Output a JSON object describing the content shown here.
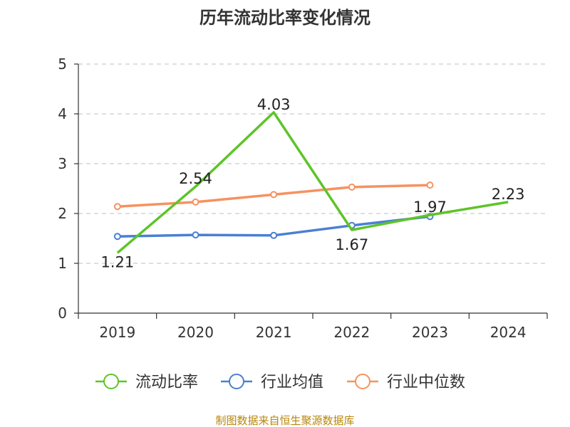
{
  "chart_data": {
    "type": "line",
    "title": "历年流动比率变化情况",
    "xlabel": "",
    "ylabel": "",
    "categories": [
      "2019",
      "2020",
      "2021",
      "2022",
      "2023",
      "2024"
    ],
    "ylim": [
      0,
      5
    ],
    "yticks": [
      0,
      1,
      2,
      3,
      4,
      5
    ],
    "grid": true,
    "grid_style": "dashed",
    "legend_position": "bottom",
    "series": [
      {
        "name": "流动比率",
        "color": "#5ec42a",
        "values": [
          1.21,
          2.54,
          4.03,
          1.67,
          1.97,
          2.23
        ],
        "show_labels": true
      },
      {
        "name": "行业均值",
        "color": "#4a7fd4",
        "values": [
          1.54,
          1.57,
          1.56,
          1.76,
          1.94,
          null
        ],
        "show_labels": false
      },
      {
        "name": "行业中位数",
        "color": "#f59260",
        "values": [
          2.14,
          2.23,
          2.38,
          2.53,
          2.57,
          null
        ],
        "show_labels": false
      }
    ],
    "data_labels": [
      "1.21",
      "2.54",
      "4.03",
      "1.67",
      "1.97",
      "2.23"
    ],
    "source": "制图数据来自恒生聚源数据库"
  }
}
